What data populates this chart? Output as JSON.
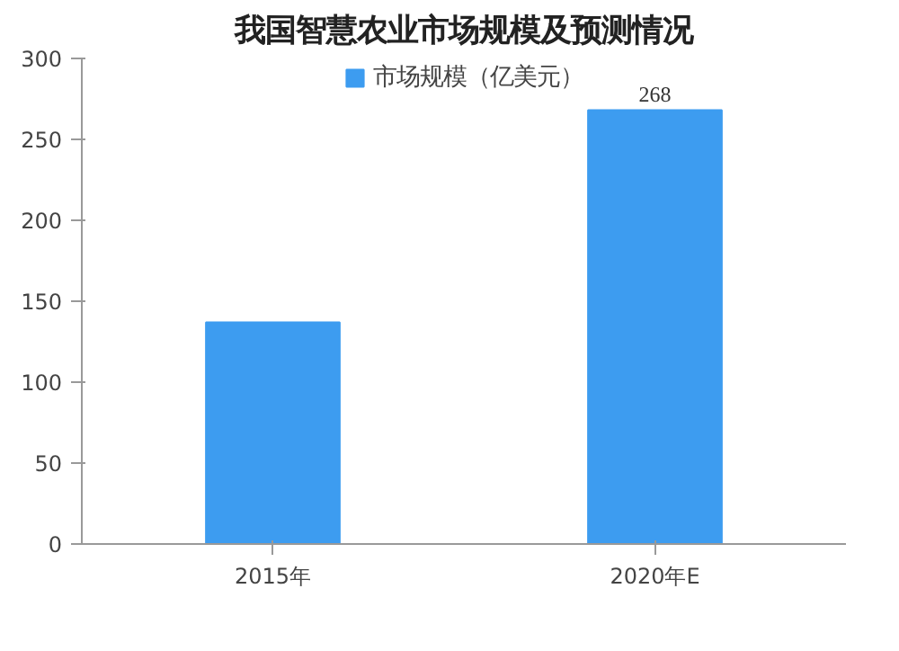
{
  "chart_data": {
    "type": "bar",
    "title": "我国智慧农业市场规模及预测情况",
    "categories": [
      "2015年",
      "2020年E"
    ],
    "series": [
      {
        "name": "市场规模（亿美元）",
        "color": "#3d9cf0",
        "values": [
          137,
          268
        ],
        "value_labels": [
          null,
          "268"
        ]
      }
    ],
    "ylim": [
      0,
      300
    ],
    "yticks": [
      0,
      50,
      100,
      150,
      200,
      250,
      300
    ],
    "grid": false,
    "legend": "top"
  }
}
